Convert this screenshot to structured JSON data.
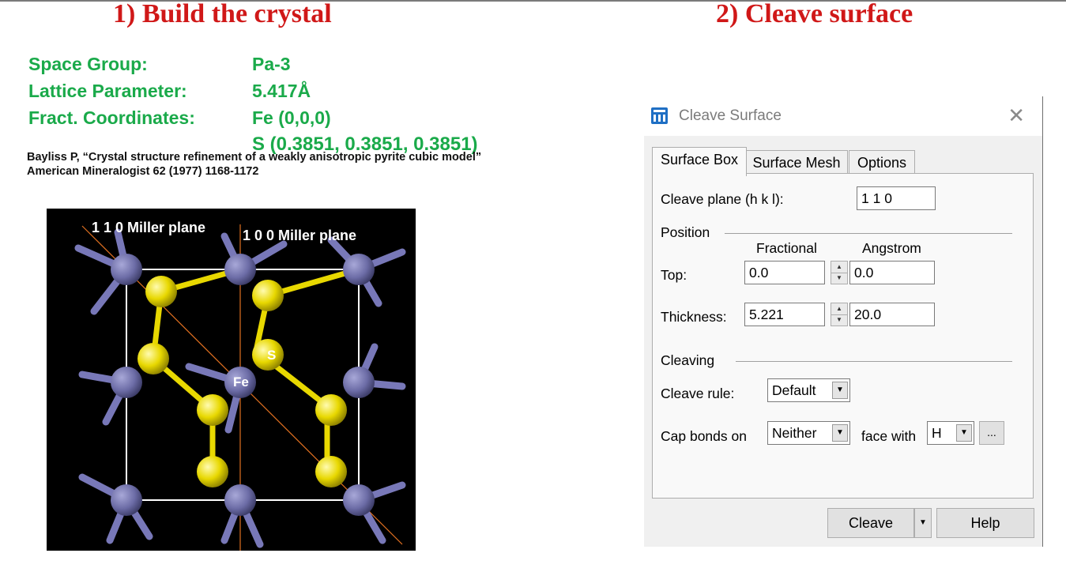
{
  "headings": {
    "build": "1) Build the crystal",
    "cleave": "2) Cleave surface"
  },
  "crystal_props": {
    "space_group_label": "Space Group:",
    "space_group_value": "Pa-3",
    "lattice_label": "Lattice Parameter:",
    "lattice_value": "5.417Å",
    "coords_label": "Fract. Coordinates:",
    "coords_fe": "Fe (0,0,0)",
    "coords_s": "S (0.3851, 0.3851, 0.3851)"
  },
  "citation": "Bayliss P, “Crystal structure refinement of a weakly anisotropic pyrite cubic model” American Mineralogist 62 (1977) 1168-1172",
  "structure_image": {
    "plane_110_label": "1 1 0 Miller plane",
    "plane_100_label": "1 0 0 Miller plane",
    "atom_s_label": "S",
    "atom_fe_label": "Fe",
    "colors": {
      "background": "#000000",
      "fe": "#6c6ca6",
      "s": "#e8d800",
      "plane_line": "#e07020",
      "cell": "#ffffff"
    }
  },
  "dialog": {
    "title": "Cleave Surface",
    "tabs": [
      "Surface Box",
      "Surface Mesh",
      "Options"
    ],
    "cleave_plane_label": "Cleave plane (h k l):",
    "cleave_plane_value": "1 1 0",
    "position_group": "Position",
    "col_fractional": "Fractional",
    "col_angstrom": "Angstrom",
    "top_label": "Top:",
    "top_fractional": "0.0",
    "top_angstrom": "0.0",
    "thickness_label": "Thickness:",
    "thickness_fractional": "5.221",
    "thickness_angstrom": "20.0",
    "cleaving_group": "Cleaving",
    "cleave_rule_label": "Cleave rule:",
    "cleave_rule_value": "Default",
    "cap_bonds_label": "Cap bonds on",
    "cap_bonds_value": "Neither",
    "face_with_label": "face with",
    "face_with_value": "H",
    "ellipsis_label": "...",
    "cleave_button": "Cleave",
    "help_button": "Help"
  }
}
